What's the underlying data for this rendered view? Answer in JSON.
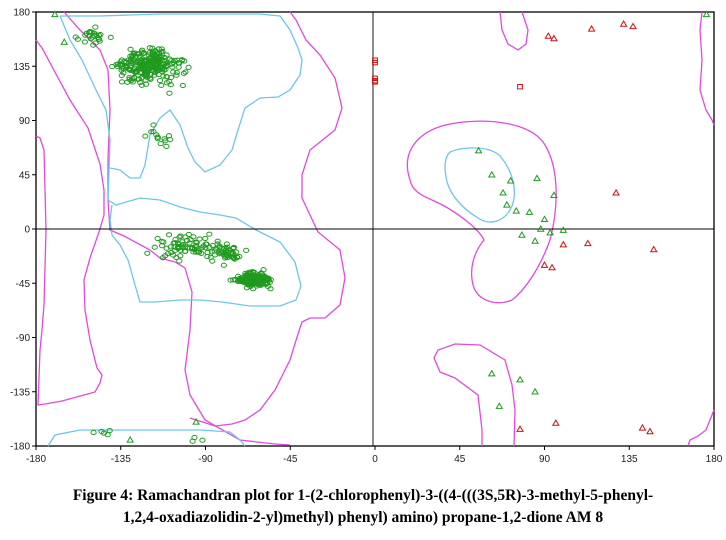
{
  "caption": {
    "line1": "Figure 4: Ramachandran plot for 1-(2-chlorophenyl)-3-((4-(((3S,5R)-3-methyl-5-phenyl-",
    "line2": "1,2,4-oxadiazolidin-2-yl)methyl) phenyl) amino) propane-1,2-dione AM 8"
  },
  "colors": {
    "favored_contour": "#6ec6e8",
    "allowed_contour": "#e04ae0",
    "general_residue": "#1f9a1f",
    "glycine_residue": "#1f9a1f",
    "outlier_residue": "#cc1111",
    "axes": "#000000"
  },
  "chart_data": {
    "type": "scatter",
    "title": "",
    "xlabel": "",
    "ylabel": "",
    "xlim": [
      -180,
      180
    ],
    "ylim": [
      -180,
      180
    ],
    "xticks": [
      -180,
      -135,
      -90,
      -45,
      0,
      45,
      90,
      135,
      180
    ],
    "yticks": [
      180,
      135,
      90,
      45,
      0,
      -45,
      -90,
      -135,
      -180
    ],
    "grid": false,
    "zero_lines": true,
    "series": [
      {
        "marker": "circle",
        "color": "#1f9a1f",
        "clusters": [
          {
            "center": [
              -120,
              135
            ],
            "spread": [
              28,
              22
            ],
            "count": 260
          },
          {
            "center": [
              -150,
              160
            ],
            "spread": [
              12,
              12
            ],
            "count": 25
          },
          {
            "center": [
              -115,
              75
            ],
            "spread": [
              14,
              18
            ],
            "count": 14
          },
          {
            "center": [
              -100,
              -15
            ],
            "spread": [
              30,
              18
            ],
            "count": 70
          },
          {
            "center": [
              -65,
              -42
            ],
            "spread": [
              14,
              10
            ],
            "count": 230
          },
          {
            "center": [
              -80,
              -20
            ],
            "spread": [
              18,
              14
            ],
            "count": 50
          },
          {
            "center": [
              -145,
              -170
            ],
            "spread": [
              15,
              8
            ],
            "count": 5
          },
          {
            "center": [
              -95,
              -175
            ],
            "spread": [
              8,
              5
            ],
            "count": 3
          }
        ]
      },
      {
        "marker": "triangle",
        "color": "#1f9a1f",
        "points": [
          [
            -170,
            178
          ],
          [
            -165,
            155
          ],
          [
            -95,
            -160
          ],
          [
            -130,
            -175
          ],
          [
            176,
            178
          ],
          [
            55,
            65
          ],
          [
            62,
            45
          ],
          [
            68,
            30
          ],
          [
            72,
            40
          ],
          [
            75,
            15
          ],
          [
            82,
            14
          ],
          [
            78,
            -5
          ],
          [
            85,
            -10
          ],
          [
            88,
            0
          ],
          [
            93,
            -3
          ],
          [
            95,
            28
          ],
          [
            86,
            42
          ],
          [
            62,
            -120
          ],
          [
            66,
            -147
          ],
          [
            85,
            -135
          ],
          [
            77,
            -125
          ],
          [
            90,
            8
          ],
          [
            100,
            -1
          ],
          [
            70,
            20
          ]
        ]
      },
      {
        "marker": "triangle",
        "color": "#cc1111",
        "points": [
          [
            115,
            166
          ],
          [
            132,
            170
          ],
          [
            137,
            168
          ],
          [
            128,
            30
          ],
          [
            113,
            -12
          ],
          [
            100,
            -13
          ],
          [
            90,
            -30
          ],
          [
            94,
            -32
          ],
          [
            148,
            -17
          ],
          [
            146,
            -168
          ],
          [
            142,
            -165
          ],
          [
            77,
            -166
          ],
          [
            96,
            -161
          ],
          [
            95,
            158
          ],
          [
            92,
            160
          ]
        ]
      },
      {
        "marker": "square",
        "color": "#cc1111",
        "points": [
          [
            0,
            140
          ],
          [
            0,
            138
          ],
          [
            0,
            125
          ],
          [
            0,
            122
          ],
          [
            0,
            123
          ],
          [
            77,
            118
          ]
        ]
      }
    ]
  }
}
